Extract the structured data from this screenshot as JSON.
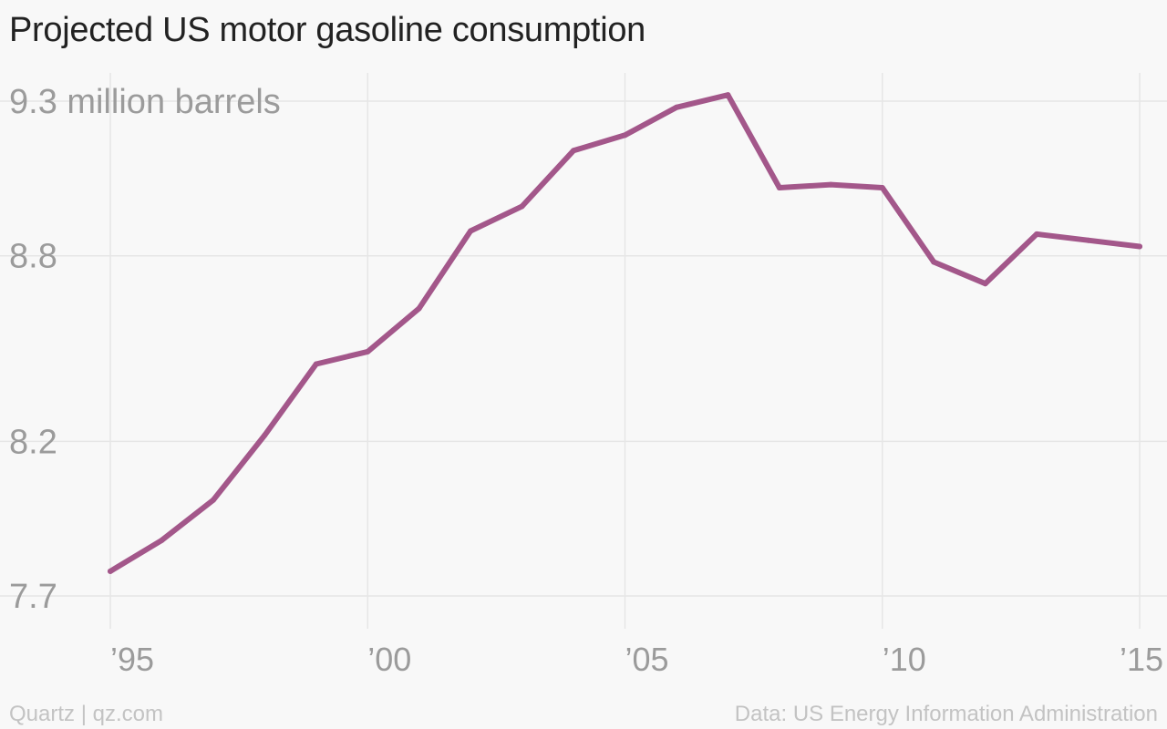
{
  "title": "Projected US motor gasoline consumption",
  "footer": {
    "source_left": "Quartz | qz.com",
    "source_right": "Data: US Energy Information Administration"
  },
  "colors": {
    "line": "#a3578a",
    "grid": "#e6e6e6",
    "tick_label": "#9b9b9b",
    "title": "#222222"
  },
  "chart_data": {
    "type": "line",
    "title": "Projected US motor gasoline consumption",
    "xlabel": "",
    "ylabel": "",
    "ylim": [
      7.7,
      9.3
    ],
    "xlim": [
      1995,
      2015
    ],
    "y_ticks": [
      {
        "value": 9.3,
        "label": "9.3 million barrels"
      },
      {
        "value": 8.8,
        "label": "8.8"
      },
      {
        "value": 8.2,
        "label": "8.2"
      },
      {
        "value": 7.7,
        "label": "7.7"
      }
    ],
    "x_ticks": [
      {
        "value": 1995,
        "label": "’95"
      },
      {
        "value": 2000,
        "label": "’00"
      },
      {
        "value": 2005,
        "label": "’05"
      },
      {
        "value": 2010,
        "label": "’10"
      },
      {
        "value": 2015,
        "label": "’15"
      }
    ],
    "grid": true,
    "legend": "none",
    "series": [
      {
        "x": [
          1995,
          1996,
          1997,
          1998,
          1999,
          2000,
          2001,
          2002,
          2003,
          2004,
          2005,
          2006,
          2007,
          2008,
          2009,
          2010,
          2011,
          2012,
          2013,
          2014,
          2015
        ],
        "values": [
          7.78,
          7.88,
          8.01,
          8.22,
          8.45,
          8.49,
          8.63,
          8.88,
          8.96,
          9.14,
          9.19,
          9.28,
          9.32,
          9.02,
          9.03,
          9.02,
          8.78,
          8.71,
          8.87,
          8.85,
          8.83
        ]
      }
    ]
  }
}
